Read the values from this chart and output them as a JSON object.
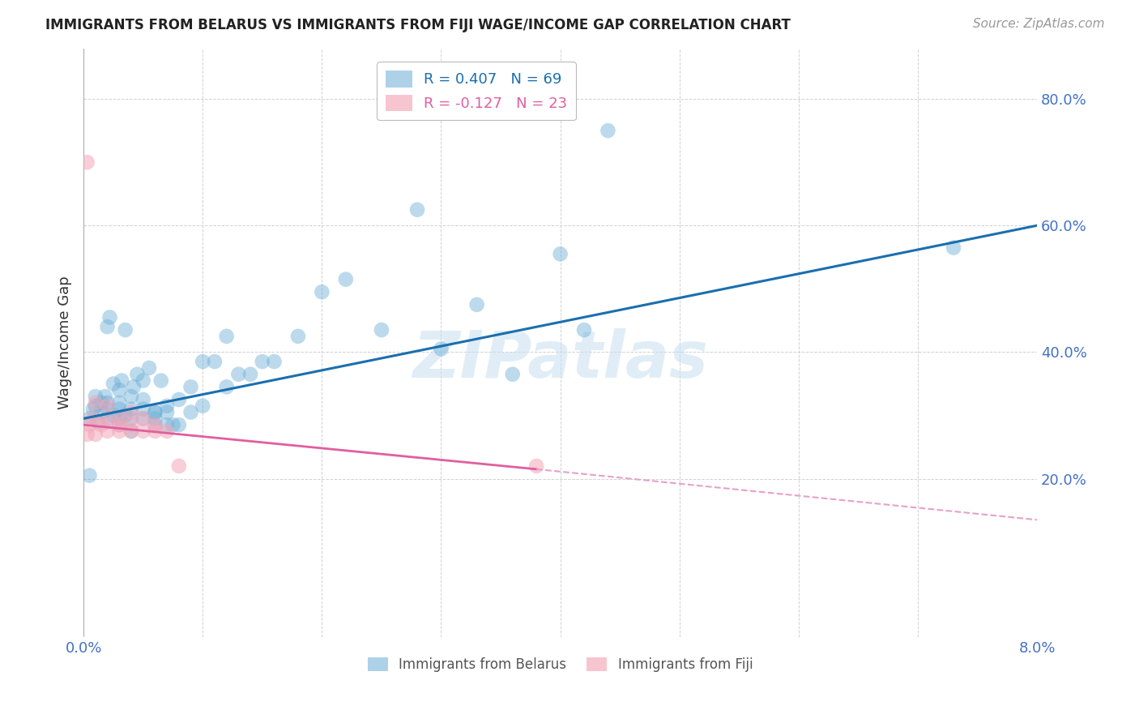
{
  "title": "IMMIGRANTS FROM BELARUS VS IMMIGRANTS FROM FIJI WAGE/INCOME GAP CORRELATION CHART",
  "source": "Source: ZipAtlas.com",
  "ylabel": "Wage/Income Gap",
  "xlim": [
    0.0,
    0.08
  ],
  "ylim": [
    -0.05,
    0.88
  ],
  "ytick_values": [
    0.2,
    0.4,
    0.6,
    0.8
  ],
  "xtick_values": [
    0.0,
    0.01,
    0.02,
    0.03,
    0.04,
    0.05,
    0.06,
    0.07,
    0.08
  ],
  "watermark": "ZIPatlas",
  "belarus_color": "#6baed6",
  "fiji_color": "#f4a6b8",
  "belarus_line_color": "#1a6faf",
  "fiji_line_solid_color": "#e05fa0",
  "fiji_line_dash_color": "#e8a0c8",
  "belarus_R": 0.407,
  "belarus_N": 69,
  "fiji_R": -0.127,
  "fiji_N": 23,
  "belarus_line": {
    "x0": 0.0,
    "y0": 0.295,
    "x1": 0.08,
    "y1": 0.6
  },
  "fiji_line_solid": {
    "x0": 0.0,
    "y0": 0.285,
    "x1": 0.038,
    "y1": 0.215
  },
  "fiji_line_dash": {
    "x0": 0.038,
    "y0": 0.215,
    "x1": 0.08,
    "y1": 0.135
  },
  "belarus_scatter_x": [
    0.0005,
    0.0008,
    0.001,
    0.001,
    0.0012,
    0.0015,
    0.0015,
    0.0018,
    0.002,
    0.002,
    0.002,
    0.002,
    0.0022,
    0.0025,
    0.0025,
    0.003,
    0.003,
    0.003,
    0.003,
    0.003,
    0.0032,
    0.0035,
    0.0035,
    0.004,
    0.004,
    0.004,
    0.004,
    0.0042,
    0.0045,
    0.005,
    0.005,
    0.005,
    0.005,
    0.0055,
    0.006,
    0.006,
    0.006,
    0.006,
    0.0065,
    0.007,
    0.007,
    0.007,
    0.0075,
    0.008,
    0.008,
    0.009,
    0.009,
    0.01,
    0.01,
    0.011,
    0.012,
    0.012,
    0.013,
    0.014,
    0.015,
    0.016,
    0.018,
    0.02,
    0.022,
    0.025,
    0.028,
    0.03,
    0.033,
    0.036,
    0.04,
    0.042,
    0.044,
    0.073,
    0.0005
  ],
  "belarus_scatter_y": [
    0.295,
    0.31,
    0.315,
    0.33,
    0.29,
    0.305,
    0.32,
    0.33,
    0.295,
    0.31,
    0.32,
    0.44,
    0.455,
    0.3,
    0.35,
    0.285,
    0.295,
    0.31,
    0.32,
    0.34,
    0.355,
    0.435,
    0.3,
    0.275,
    0.295,
    0.31,
    0.33,
    0.345,
    0.365,
    0.295,
    0.31,
    0.325,
    0.355,
    0.375,
    0.285,
    0.295,
    0.305,
    0.305,
    0.355,
    0.285,
    0.305,
    0.315,
    0.285,
    0.325,
    0.285,
    0.305,
    0.345,
    0.315,
    0.385,
    0.385,
    0.425,
    0.345,
    0.365,
    0.365,
    0.385,
    0.385,
    0.425,
    0.495,
    0.515,
    0.435,
    0.625,
    0.405,
    0.475,
    0.365,
    0.555,
    0.435,
    0.75,
    0.565,
    0.205
  ],
  "fiji_scatter_x": [
    0.0003,
    0.0005,
    0.0008,
    0.001,
    0.001,
    0.0015,
    0.002,
    0.002,
    0.002,
    0.003,
    0.003,
    0.003,
    0.004,
    0.004,
    0.004,
    0.005,
    0.005,
    0.006,
    0.006,
    0.007,
    0.008,
    0.038,
    0.0003
  ],
  "fiji_scatter_y": [
    0.27,
    0.285,
    0.295,
    0.27,
    0.32,
    0.285,
    0.275,
    0.29,
    0.315,
    0.275,
    0.285,
    0.295,
    0.275,
    0.285,
    0.305,
    0.275,
    0.295,
    0.275,
    0.285,
    0.275,
    0.22,
    0.22,
    0.7
  ]
}
